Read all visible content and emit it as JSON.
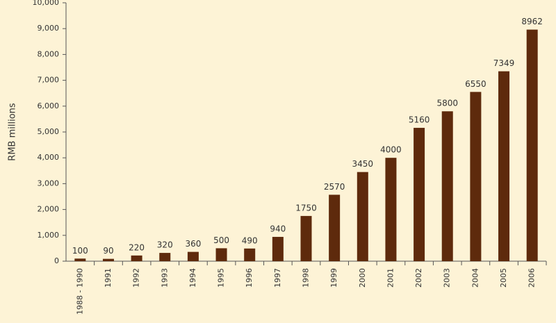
{
  "chart_data": {
    "type": "bar",
    "y_label": "RMB millions",
    "categories": [
      "1988 - 1990",
      "1991",
      "1992",
      "1993",
      "1994",
      "1995",
      "1996",
      "1997",
      "1998",
      "1999",
      "2000",
      "2001",
      "2002",
      "2003",
      "2004",
      "2005",
      "2006"
    ],
    "values": [
      100,
      90,
      220,
      320,
      360,
      500,
      490,
      940,
      1750,
      2570,
      3450,
      4000,
      5160,
      5800,
      6550,
      7349,
      8962
    ],
    "color": "#5e2a0c",
    "ylim": [
      0,
      10000
    ],
    "yticks": [
      0,
      {
        "value": 1000,
        "label": "1,000"
      },
      {
        "value": 2000,
        "label": "2,000"
      },
      {
        "value": 3000,
        "label": "3,000"
      },
      {
        "value": 4000,
        "label": "4,000"
      },
      {
        "value": 5000,
        "label": "5,000"
      },
      {
        "value": 6000,
        "label": "6,000"
      },
      {
        "value": 7000,
        "label": "7,000"
      },
      {
        "value": 8000,
        "label": "8,000"
      },
      {
        "value": 9000,
        "label": "9,000"
      },
      {
        "value": 10000,
        "label": "10,000"
      }
    ],
    "grid": false
  }
}
